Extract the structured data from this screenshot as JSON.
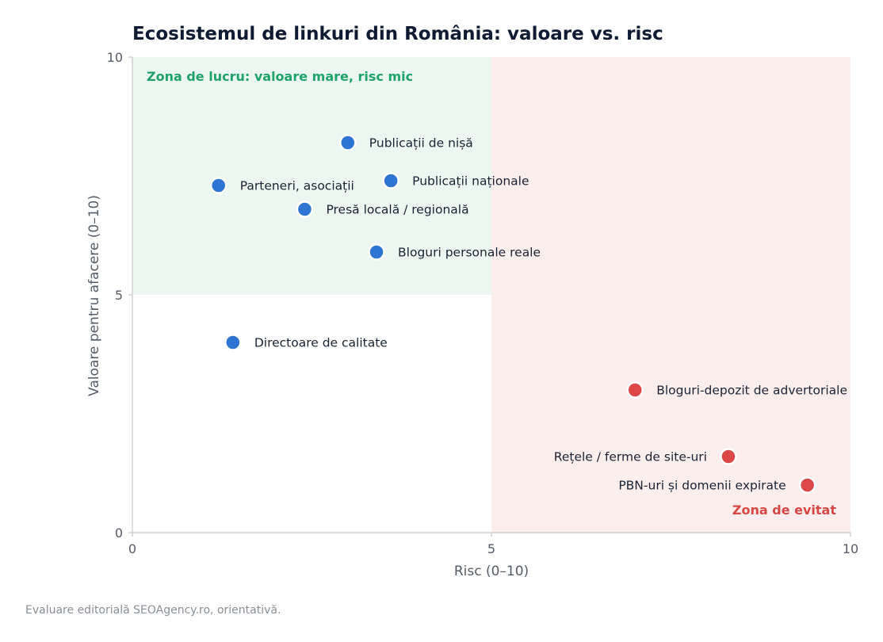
{
  "chart_data": {
    "type": "scatter",
    "title": "Ecosistemul de linkuri din România: valoare vs. risc",
    "xlabel": "Risc (0–10)",
    "ylabel": "Valoare pentru afacere (0–10)",
    "xlim": [
      0,
      10
    ],
    "ylim": [
      0,
      10
    ],
    "xticks": [
      "0",
      "5",
      "10"
    ],
    "yticks": [
      "0",
      "5",
      "10"
    ],
    "grid": false,
    "zones": [
      {
        "label": "Zona de lucru: valoare mare, risc mic",
        "x": [
          0,
          5
        ],
        "y": [
          5,
          10
        ],
        "fill": "#edf7f1",
        "text_color": "#1fa36a"
      },
      {
        "label": "Zona de evitat",
        "x": [
          5,
          10
        ],
        "y": [
          0,
          10
        ],
        "fill": "#fdeeee",
        "text_color": "#d94646"
      }
    ],
    "points": [
      {
        "label": "Publicații de nișă",
        "x": 3.0,
        "y": 8.2,
        "group": "safe"
      },
      {
        "label": "Parteneri, asociații",
        "x": 1.2,
        "y": 7.3,
        "group": "safe"
      },
      {
        "label": "Publicații naționale",
        "x": 3.6,
        "y": 7.4,
        "group": "safe"
      },
      {
        "label": "Presă locală / regională",
        "x": 2.4,
        "y": 6.8,
        "group": "safe"
      },
      {
        "label": "Bloguri personale reale",
        "x": 3.4,
        "y": 5.9,
        "group": "safe"
      },
      {
        "label": "Directoare de calitate",
        "x": 1.4,
        "y": 4.0,
        "group": "safe"
      },
      {
        "label": "Bloguri-depozit de advertoriale",
        "x": 7.0,
        "y": 3.0,
        "group": "risky"
      },
      {
        "label": "Rețele / ferme de site-uri",
        "x": 8.3,
        "y": 1.6,
        "group": "risky",
        "label_side": "left"
      },
      {
        "label": "PBN-uri și domenii expirate",
        "x": 9.4,
        "y": 1.0,
        "group": "risky",
        "label_side": "left"
      }
    ],
    "colors": {
      "safe": "#2d74d3",
      "risky": "#dc4848",
      "axis": "#c4c7cc"
    }
  },
  "footnote": "Evaluare editorială SEOAgency.ro, orientativă."
}
